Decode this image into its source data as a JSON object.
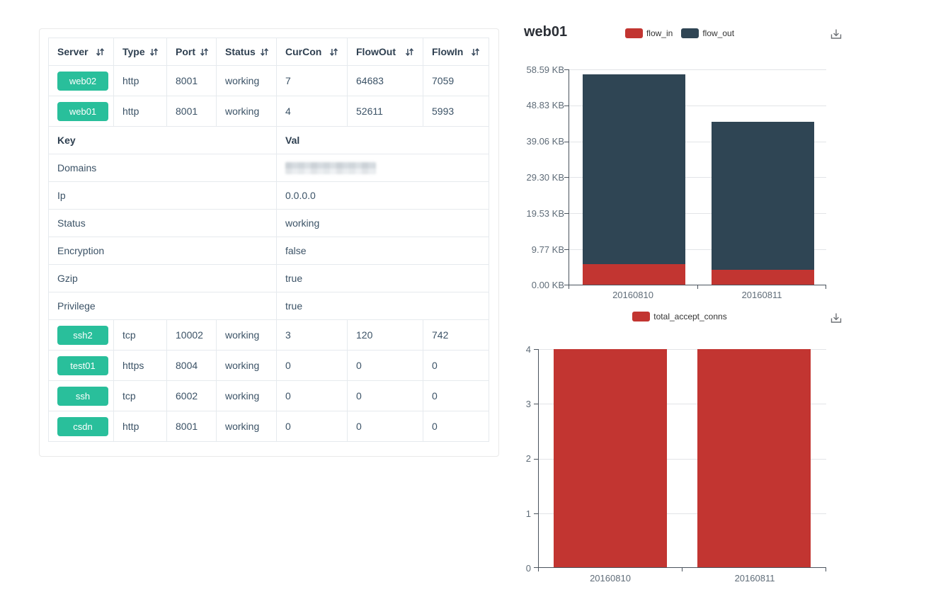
{
  "colors": {
    "accent_green": "#29bf9b",
    "flow_in_red": "#c23531",
    "flow_out_dark": "#2f4554",
    "axis_line": "#4a535d",
    "grid_line": "#e2e4e7"
  },
  "icons": {
    "sort": "sort-arrows-icon",
    "download": "download-tray-arrow-icon"
  },
  "table": {
    "headers": [
      "Server",
      "Type",
      "Port",
      "Status",
      "CurCon",
      "FlowOut",
      "FlowIn"
    ],
    "rows_top": [
      {
        "server": "web02",
        "type": "http",
        "port": "8001",
        "status": "working",
        "curcon": "7",
        "flowout": "64683",
        "flowin": "7059"
      },
      {
        "server": "web01",
        "type": "http",
        "port": "8001",
        "status": "working",
        "curcon": "4",
        "flowout": "52611",
        "flowin": "5993"
      }
    ],
    "kv_header": {
      "key": "Key",
      "val": "Val"
    },
    "kv_rows": [
      {
        "key": "Domains",
        "val": "",
        "redacted": true
      },
      {
        "key": "Ip",
        "val": "0.0.0.0"
      },
      {
        "key": "Status",
        "val": "working"
      },
      {
        "key": "Encryption",
        "val": "false"
      },
      {
        "key": "Gzip",
        "val": "true"
      },
      {
        "key": "Privilege",
        "val": "true"
      }
    ],
    "rows_bottom": [
      {
        "server": "ssh2",
        "type": "tcp",
        "port": "10002",
        "status": "working",
        "curcon": "3",
        "flowout": "120",
        "flowin": "742"
      },
      {
        "server": "test01",
        "type": "https",
        "port": "8004",
        "status": "working",
        "curcon": "0",
        "flowout": "0",
        "flowin": "0"
      },
      {
        "server": "ssh",
        "type": "tcp",
        "port": "6002",
        "status": "working",
        "curcon": "0",
        "flowout": "0",
        "flowin": "0"
      },
      {
        "server": "csdn",
        "type": "http",
        "port": "8001",
        "status": "working",
        "curcon": "0",
        "flowout": "0",
        "flowin": "0"
      }
    ]
  },
  "chart_data": [
    {
      "type": "bar",
      "stacked": true,
      "title": "web01",
      "categories": [
        "20160810",
        "20160811"
      ],
      "series": [
        {
          "name": "flow_in",
          "color": "#c23531",
          "values_kb": [
            5.85,
            4.25
          ]
        },
        {
          "name": "flow_out",
          "color": "#2f4554",
          "values_kb": [
            51.38,
            40.15
          ]
        }
      ],
      "ytick_labels": [
        "58.59 KB",
        "48.83 KB",
        "39.06 KB",
        "29.30 KB",
        "19.53 KB",
        "9.77 KB",
        "0.00 KB"
      ],
      "ylim_kb": [
        0,
        58.59
      ],
      "grid": true,
      "legend_position": "top"
    },
    {
      "type": "bar",
      "stacked": false,
      "title": "",
      "categories": [
        "20160810",
        "20160811"
      ],
      "series": [
        {
          "name": "total_accept_conns",
          "color": "#c23531",
          "values": [
            4,
            4
          ]
        }
      ],
      "ytick_labels": [
        "4",
        "3",
        "2",
        "1",
        "0"
      ],
      "ylim": [
        0,
        4
      ],
      "grid": true,
      "legend_position": "top"
    }
  ]
}
